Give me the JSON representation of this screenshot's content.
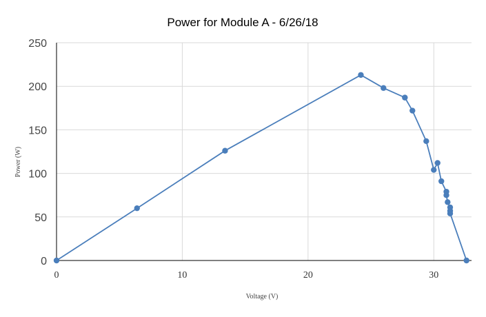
{
  "chart_data": {
    "type": "scatter",
    "title": "Power for Module A - 6/26/18",
    "xlabel": "Voltage (V)",
    "ylabel": "Power (W)",
    "xlim": [
      0,
      33
    ],
    "ylim": [
      0,
      250
    ],
    "xticks": [
      0,
      10,
      20,
      30
    ],
    "yticks": [
      0,
      50,
      100,
      150,
      200,
      250
    ],
    "grid": true,
    "legend": "none",
    "line_color": "#4a7ebb",
    "marker_color": "#4a7ebb",
    "series": [
      {
        "x": [
          0,
          6.4,
          13.4,
          24.2,
          26.0,
          27.7,
          28.3,
          29.4,
          30.0,
          30.3,
          30.6,
          31.0,
          31.0,
          31.1,
          31.3,
          31.3,
          31.3,
          32.6
        ],
        "y": [
          0,
          60,
          126,
          213,
          198,
          187,
          172,
          137,
          104,
          112,
          91,
          79,
          75,
          67,
          61,
          57,
          54,
          0
        ]
      }
    ]
  }
}
